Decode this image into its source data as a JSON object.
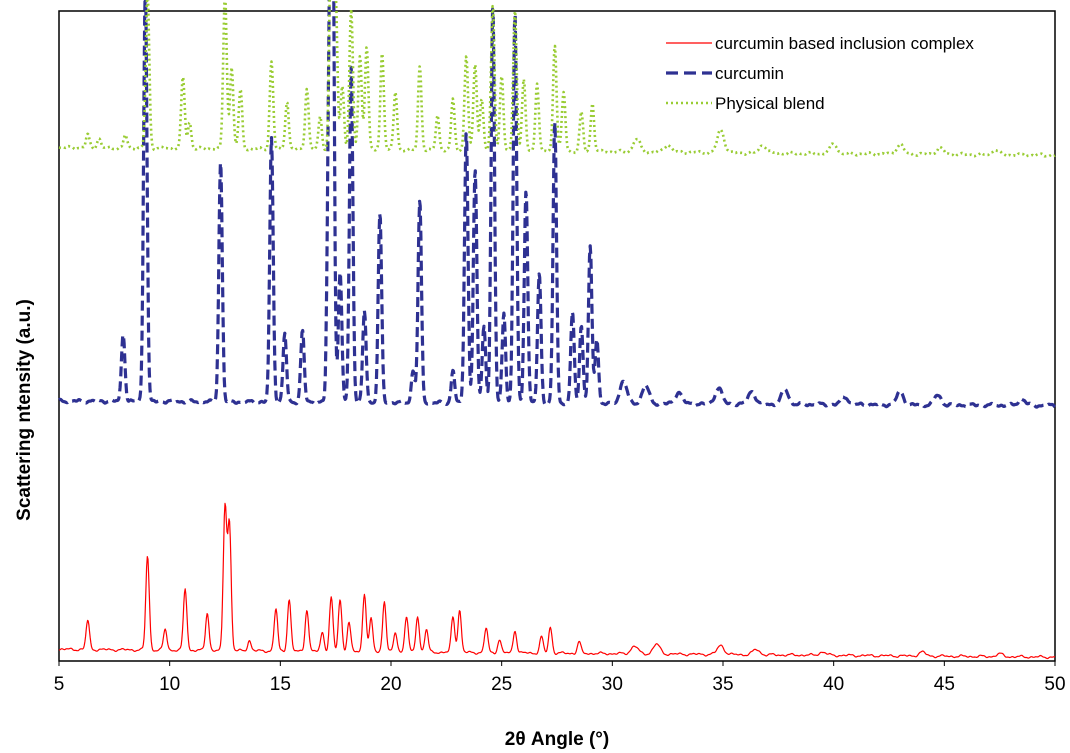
{
  "chart_data": {
    "type": "line",
    "title": "",
    "xlabel": "2θ Angle (°)",
    "ylabel": "Scattering ntensity (a.u.)",
    "xlim": [
      5,
      50
    ],
    "x_ticks": [
      5,
      10,
      15,
      20,
      25,
      30,
      35,
      40,
      45,
      50
    ],
    "y_ticks": [],
    "ylim": [
      0,
      100
    ],
    "grid": false,
    "legend_position": "top-right",
    "series": [
      {
        "name": "curcumin based inclusion complex",
        "color": "#ff0000",
        "line_style": "solid",
        "baseline": 1.8,
        "baseline_end": 0.6,
        "peaks": [
          [
            6.3,
            4.5
          ],
          [
            9.0,
            14.5
          ],
          [
            9.8,
            3.2
          ],
          [
            10.7,
            9.5
          ],
          [
            11.7,
            5.8
          ],
          [
            12.5,
            22.0
          ],
          [
            12.7,
            19.5
          ],
          [
            13.6,
            1.6
          ],
          [
            14.8,
            6.5
          ],
          [
            15.4,
            8.0
          ],
          [
            16.2,
            6.5
          ],
          [
            16.9,
            3.0
          ],
          [
            17.3,
            8.3
          ],
          [
            17.7,
            8.0
          ],
          [
            18.1,
            4.5
          ],
          [
            18.8,
            9.0
          ],
          [
            19.1,
            5.0
          ],
          [
            19.7,
            7.8
          ],
          [
            20.2,
            3.0
          ],
          [
            20.7,
            5.5
          ],
          [
            21.2,
            5.5
          ],
          [
            21.6,
            3.5
          ],
          [
            22.8,
            5.5
          ],
          [
            23.1,
            6.5
          ],
          [
            24.3,
            3.8
          ],
          [
            24.9,
            2.0
          ],
          [
            25.6,
            3.5
          ],
          [
            26.8,
            2.5
          ],
          [
            27.2,
            4.0
          ],
          [
            28.5,
            1.8
          ],
          [
            31.0,
            1.2
          ],
          [
            32.0,
            1.5
          ],
          [
            34.9,
            1.4
          ],
          [
            36.5,
            0.8
          ],
          [
            39.5,
            0.5
          ],
          [
            44.0,
            0.6
          ],
          [
            47.5,
            0.4
          ]
        ]
      },
      {
        "name": "curcumin",
        "color": "#2e3192",
        "line_style": "dashed",
        "baseline": 40.0,
        "baseline_end": 39.3,
        "peaks": [
          [
            7.9,
            10.5
          ],
          [
            8.9,
            64.0
          ],
          [
            12.3,
            37.0
          ],
          [
            14.6,
            40.5
          ],
          [
            15.2,
            10.5
          ],
          [
            16.0,
            11.0
          ],
          [
            17.2,
            45.0
          ],
          [
            17.35,
            88.0
          ],
          [
            17.7,
            20.0
          ],
          [
            18.2,
            51.5
          ],
          [
            18.8,
            14.0
          ],
          [
            19.5,
            29.0
          ],
          [
            21.0,
            5.0
          ],
          [
            21.3,
            31.0
          ],
          [
            22.8,
            5.0
          ],
          [
            23.4,
            42.0
          ],
          [
            23.8,
            36.0
          ],
          [
            24.2,
            12.0
          ],
          [
            24.6,
            61.0
          ],
          [
            25.1,
            14.0
          ],
          [
            25.6,
            60.0
          ],
          [
            26.1,
            33.0
          ],
          [
            26.7,
            20.0
          ],
          [
            27.4,
            43.5
          ],
          [
            28.2,
            14.0
          ],
          [
            28.6,
            12.0
          ],
          [
            29.0,
            24.0
          ],
          [
            29.3,
            10.0
          ],
          [
            30.5,
            3.5
          ],
          [
            31.5,
            2.8
          ],
          [
            33.0,
            1.8
          ],
          [
            34.8,
            2.5
          ],
          [
            36.3,
            2.0
          ],
          [
            37.8,
            2.3
          ],
          [
            40.5,
            1.2
          ],
          [
            43.0,
            2.0
          ],
          [
            44.7,
            1.5
          ],
          [
            48.5,
            1.0
          ]
        ]
      },
      {
        "name": "Physical blend",
        "color": "#99cc33",
        "line_style": "dotted",
        "baseline": 79.0,
        "baseline_end": 77.8,
        "peaks": [
          [
            6.3,
            2.0
          ],
          [
            6.8,
            1.5
          ],
          [
            8.0,
            2.0
          ],
          [
            9.0,
            24.0
          ],
          [
            10.6,
            11.0
          ],
          [
            10.9,
            4.0
          ],
          [
            12.5,
            24.0
          ],
          [
            12.8,
            12.5
          ],
          [
            13.2,
            9.0
          ],
          [
            14.6,
            13.5
          ],
          [
            15.3,
            7.5
          ],
          [
            16.2,
            9.5
          ],
          [
            16.8,
            5.0
          ],
          [
            17.3,
            36.0
          ],
          [
            17.5,
            23.0
          ],
          [
            17.8,
            10.0
          ],
          [
            18.2,
            21.5
          ],
          [
            18.6,
            14.5
          ],
          [
            18.9,
            16.0
          ],
          [
            19.6,
            15.0
          ],
          [
            20.2,
            9.0
          ],
          [
            21.3,
            13.0
          ],
          [
            22.1,
            5.5
          ],
          [
            22.8,
            8.0
          ],
          [
            23.4,
            14.5
          ],
          [
            23.8,
            13.5
          ],
          [
            24.1,
            8.0
          ],
          [
            24.6,
            22.5
          ],
          [
            25.0,
            11.5
          ],
          [
            25.6,
            22.0
          ],
          [
            26.0,
            11.0
          ],
          [
            26.6,
            10.5
          ],
          [
            27.4,
            16.5
          ],
          [
            27.8,
            9.0
          ],
          [
            28.6,
            6.0
          ],
          [
            29.1,
            7.5
          ],
          [
            31.1,
            2.0
          ],
          [
            32.5,
            1.2
          ],
          [
            34.9,
            3.5
          ],
          [
            36.8,
            1.2
          ],
          [
            40.0,
            1.5
          ],
          [
            43.0,
            1.5
          ],
          [
            44.8,
            1.0
          ],
          [
            47.3,
            0.8
          ]
        ]
      }
    ]
  }
}
